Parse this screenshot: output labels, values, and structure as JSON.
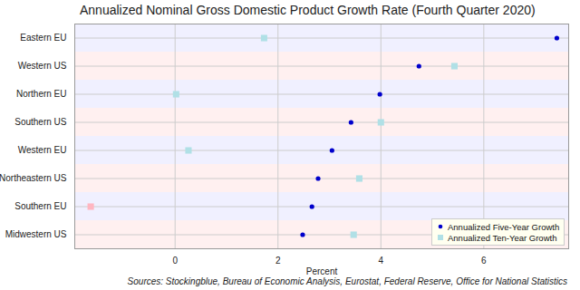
{
  "chart_data": {
    "type": "scatter",
    "title": "Annualized Nominal Gross Domestic Product Growth Rate (Fourth Quarter 2020)",
    "x_label": "Percent",
    "caption": "Sources: Stockingblue, Bureau of Economic Analysis, Eurostat, Federal Reserve, Office for National Statistics",
    "categories": [
      "Eastern EU",
      "Western US",
      "Northern EU",
      "Southern US",
      "Western EU",
      "Northeastern US",
      "Southern EU",
      "Midwestern US"
    ],
    "series": [
      {
        "name": "Annualized Five-Year Growth",
        "color": "#0000cc",
        "marker": "circle",
        "values": [
          7.42,
          4.74,
          3.98,
          3.42,
          3.05,
          2.78,
          2.66,
          2.48
        ]
      },
      {
        "name": "Annualized Ten-Year Growth",
        "color": "#b0e0e6",
        "marker": "square",
        "colors": [
          "#b0e0e6",
          "#b0e0e6",
          "#b0e0e6",
          "#b0e0e6",
          "#b0e0e6",
          "#b0e0e6",
          "#ffb6c1",
          "#b0e0e6"
        ],
        "values": [
          1.73,
          5.43,
          0.02,
          4.0,
          0.26,
          3.58,
          -1.64,
          3.47
        ]
      }
    ],
    "orientation": "horizontal",
    "xlim": [
      -1.95,
      7.65
    ],
    "xticks": [
      0,
      2,
      4,
      6
    ],
    "grid": true,
    "legend": "lower right"
  }
}
